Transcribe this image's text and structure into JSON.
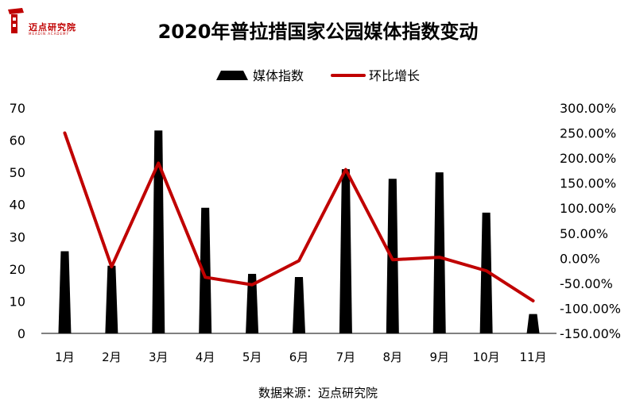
{
  "header": {
    "logo_text": "迈点研究院",
    "logo_subtext": "MEADIN ACADEMY",
    "title": "2020年普拉措国家公园媒体指数变动"
  },
  "footer": {
    "source": "数据来源：迈点研究院"
  },
  "chart_data": {
    "type": "bar",
    "title": "2020年普拉措国家公园媒体指数变动",
    "categories": [
      "1月",
      "2月",
      "3月",
      "4月",
      "5月",
      "6月",
      "7月",
      "8月",
      "9月",
      "10月",
      "11月"
    ],
    "series": [
      {
        "name": "媒体指数",
        "type": "bar",
        "axis": "left",
        "color": "#000000",
        "values": [
          25.5,
          21,
          63,
          39,
          18.5,
          17.5,
          51,
          48,
          50,
          37.5,
          6
        ]
      },
      {
        "name": "环比增长",
        "type": "line",
        "axis": "right",
        "color": "#c00000",
        "values": [
          2.5,
          -0.17,
          1.9,
          -0.38,
          -0.53,
          -0.05,
          1.77,
          -0.03,
          0.02,
          -0.25,
          -0.85
        ]
      }
    ],
    "y_left": {
      "min": 0,
      "max": 70,
      "ticks": [
        "0",
        "10",
        "20",
        "30",
        "40",
        "50",
        "60",
        "70"
      ]
    },
    "y_right": {
      "min": -1.5,
      "max": 3.0,
      "ticks": [
        "-150.00%",
        "-100.00%",
        "-50.00%",
        "0.00%",
        "50.00%",
        "100.00%",
        "150.00%",
        "200.00%",
        "250.00%",
        "300.00%"
      ]
    },
    "legend_position": "top",
    "grid": false
  }
}
